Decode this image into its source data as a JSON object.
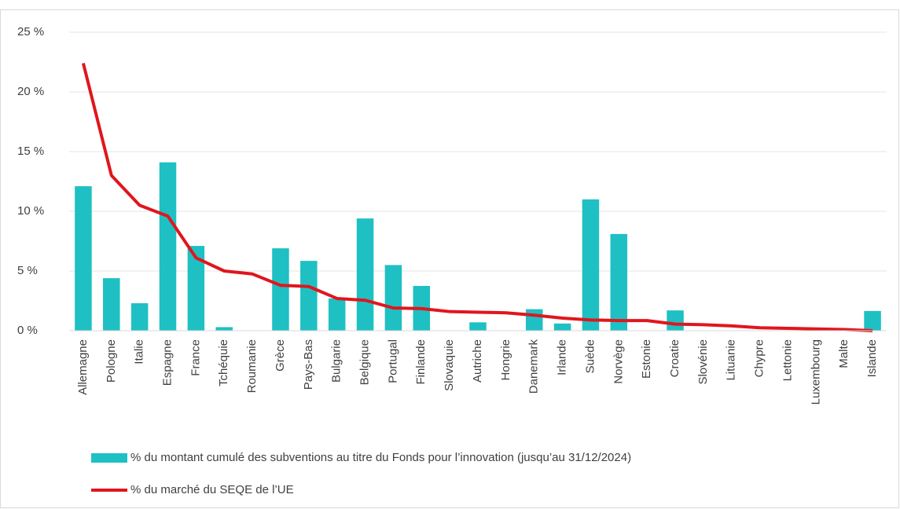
{
  "chart_data": {
    "type": "bar+line",
    "categories": [
      "Allemagne",
      "Pologne",
      "Italie",
      "Espagne",
      "France",
      "Tchéquie",
      "Roumanie",
      "Grèce",
      "Pays-Bas",
      "Bulgarie",
      "Belgique",
      "Portugal",
      "Finlande",
      "Slovaquie",
      "Autriche",
      "Hongrie",
      "Danemark",
      "Irlande",
      "Suède",
      "Norvège",
      "Estonie",
      "Croatie",
      "Slovénie",
      "Lituanie",
      "Chypre",
      "Lettonie",
      "Luxembourg",
      "Malte",
      "Islande"
    ],
    "series": [
      {
        "name": "% du montant cumulé des subventions au titre du Fonds pour l’innovation (jusqu’au 31/12/2024)",
        "type": "bar",
        "color": "#1fc0c3",
        "values": [
          12.1,
          4.4,
          2.3,
          14.1,
          7.1,
          0.3,
          0,
          6.9,
          5.85,
          2.7,
          9.4,
          5.5,
          3.75,
          0,
          0.7,
          0,
          1.8,
          0.6,
          11.0,
          8.1,
          0,
          1.7,
          0,
          0,
          0,
          0,
          0,
          0,
          1.65
        ]
      },
      {
        "name": "% du marché du SEQE de l’UE",
        "type": "line",
        "color": "#e0161d",
        "values": [
          22.4,
          13.0,
          10.5,
          9.6,
          6.1,
          5.0,
          4.75,
          3.8,
          3.7,
          2.7,
          2.55,
          1.9,
          1.85,
          1.6,
          1.55,
          1.5,
          1.3,
          1.05,
          0.9,
          0.85,
          0.85,
          0.55,
          0.5,
          0.4,
          0.25,
          0.2,
          0.15,
          0.1,
          0
        ]
      }
    ],
    "ylim": [
      0,
      25
    ],
    "yticks": [
      {
        "value": 0,
        "label": "0 %"
      },
      {
        "value": 5,
        "label": "5 %"
      },
      {
        "value": 10,
        "label": "10 %"
      },
      {
        "value": 15,
        "label": "15 %"
      },
      {
        "value": 20,
        "label": "20 %"
      },
      {
        "value": 25,
        "label": "25 %"
      }
    ],
    "grid": true
  }
}
